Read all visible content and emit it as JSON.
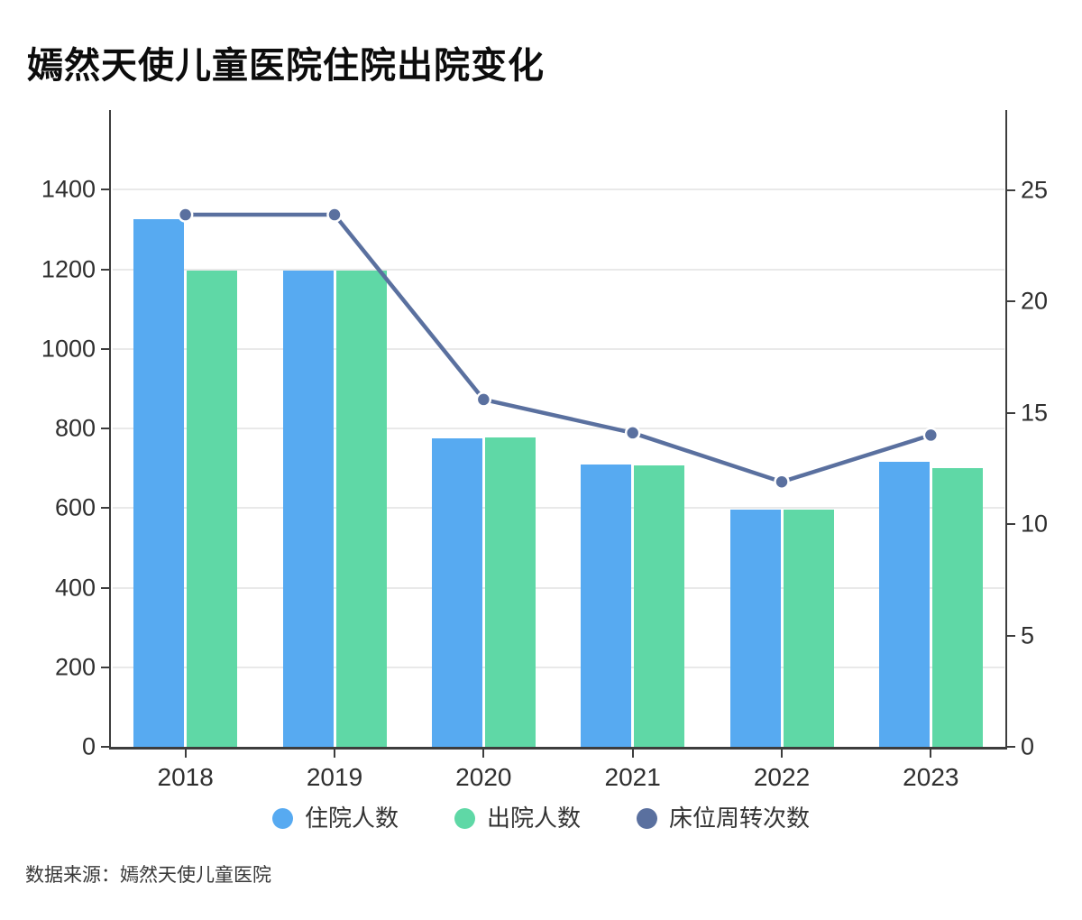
{
  "title": "嫣然天使儿童医院住院出院变化",
  "source_note": "数据来源：嫣然天使儿童医院",
  "colors": {
    "background": "#ffffff",
    "inpatient_bar": "#57aaf1",
    "discharge_bar": "#5fd8a6",
    "turnover_line": "#5a709f",
    "axis_line": "#3d3d3d",
    "grid_line": "#e9e9e9",
    "tick_text": "#2f2f2f",
    "title_text": "#0c0c0c"
  },
  "legend": {
    "items": [
      {
        "key": "inpatient",
        "label": "住院人数",
        "color": "#57aaf1"
      },
      {
        "key": "discharge",
        "label": "出院人数",
        "color": "#5fd8a6"
      },
      {
        "key": "turnover",
        "label": "床位周转次数",
        "color": "#5a709f"
      }
    ]
  },
  "chart_data": {
    "type": "bar+line",
    "title": "嫣然天使儿童医院住院出院变化",
    "categories": [
      "2018",
      "2019",
      "2020",
      "2021",
      "2022",
      "2023"
    ],
    "series": [
      {
        "key": "inpatient",
        "name": "住院人数",
        "type": "bar",
        "axis": "left",
        "color": "#57aaf1",
        "values": [
          1325,
          1196,
          776,
          710,
          597,
          716
        ]
      },
      {
        "key": "discharge",
        "name": "出院人数",
        "type": "bar",
        "axis": "left",
        "color": "#5fd8a6",
        "values": [
          1196,
          1196,
          778,
          707,
          597,
          701
        ]
      },
      {
        "key": "turnover",
        "name": "床位周转次数",
        "type": "line",
        "axis": "right",
        "color": "#5a709f",
        "values": [
          23.9,
          23.9,
          15.6,
          14.1,
          11.9,
          14.0
        ]
      }
    ],
    "left_axis": {
      "ticks": [
        0,
        200,
        400,
        600,
        800,
        1000,
        1200,
        1400
      ],
      "max": 1600
    },
    "right_axis": {
      "ticks": [
        0,
        5,
        10,
        15,
        20,
        25
      ],
      "max": 28.6
    },
    "grid": true,
    "legend_position": "bottom"
  }
}
